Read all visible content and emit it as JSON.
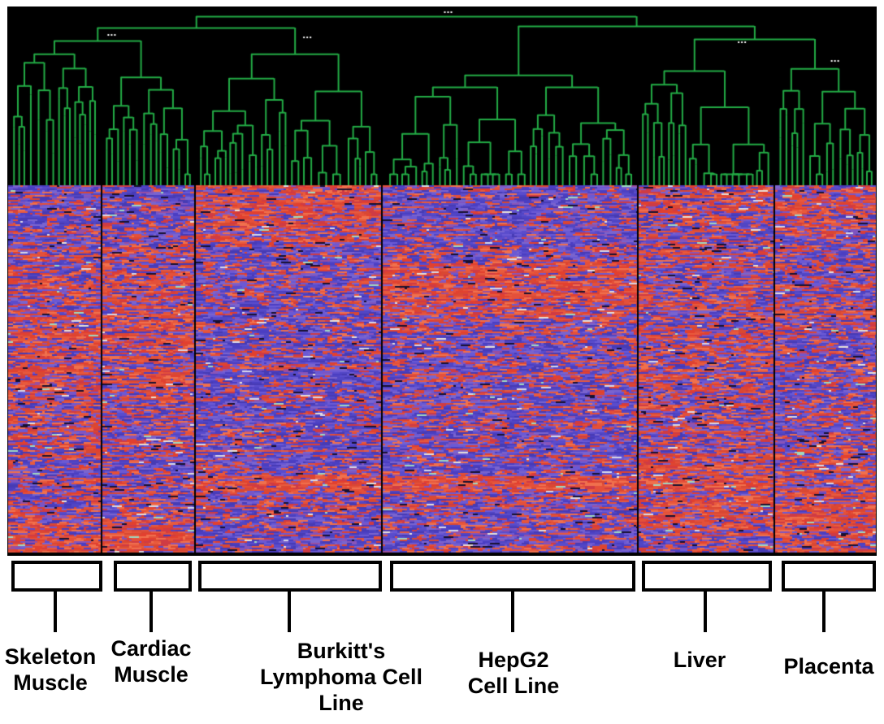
{
  "figure": {
    "background_hex": "#ffffff",
    "panel_background_hex": "#000000"
  },
  "chart_data": {
    "type": "heatmap",
    "description": "Two-way hierarchical clustering of gene expression: green sample dendrogram on top, genes as rows below; red/orange = high expression, blue/purple = low expression; six labeled sample clusters",
    "palette": {
      "reds": [
        "#e2402f",
        "#e85a3d",
        "#d94833",
        "#f0704d",
        "#cf3b44",
        "#e4503a"
      ],
      "blues": [
        "#5a4ccc",
        "#4b3ec2",
        "#6b59d4",
        "#5146c4",
        "#7a64ce",
        "#473bb4"
      ],
      "mids": [
        "#8a55b8",
        "#9a4f9f",
        "#7e54c0"
      ],
      "lights": [
        "#d8d8e8",
        "#e8e0d8",
        "#9fd8c0"
      ]
    },
    "dendrogram": {
      "color": "#23ad46",
      "position": "top",
      "ellipsis": [
        {
          "x": 0.507,
          "y": 6
        },
        {
          "x": 0.12,
          "y": 34
        },
        {
          "x": 0.345,
          "y": 37
        },
        {
          "x": 0.845,
          "y": 43
        },
        {
          "x": 0.952,
          "y": 66
        }
      ]
    },
    "row_bands": 24,
    "groups": [
      {
        "label": "Skeleton\nMuscle",
        "x0": 0.0,
        "x1": 0.108,
        "red_rows": [
          0.3,
          0.3,
          0.35,
          0.4,
          0.45,
          0.5,
          0.55,
          0.6,
          0.68,
          0.7,
          0.65,
          0.62,
          0.65,
          0.6,
          0.55,
          0.5,
          0.45,
          0.5,
          0.42,
          0.45,
          0.5,
          0.55,
          0.72,
          0.85
        ]
      },
      {
        "label": "Cardiac\nMuscle",
        "x0": 0.108,
        "x1": 0.216,
        "red_rows": [
          0.25,
          0.3,
          0.35,
          0.4,
          0.5,
          0.55,
          0.6,
          0.62,
          0.65,
          0.7,
          0.6,
          0.55,
          0.6,
          0.55,
          0.5,
          0.45,
          0.4,
          0.45,
          0.4,
          0.5,
          0.55,
          0.6,
          0.75,
          0.88
        ]
      },
      {
        "label": "Burkitt's\nLymphoma Cell\nLine",
        "x0": 0.216,
        "x1": 0.431,
        "red_rows": [
          0.85,
          0.8,
          0.7,
          0.55,
          0.35,
          0.3,
          0.3,
          0.35,
          0.3,
          0.3,
          0.35,
          0.3,
          0.3,
          0.35,
          0.3,
          0.3,
          0.35,
          0.3,
          0.3,
          0.9,
          0.4,
          0.3,
          0.3,
          0.3
        ]
      },
      {
        "label": "HepG2\nCell Line",
        "x0": 0.431,
        "x1": 0.725,
        "red_rows": [
          0.35,
          0.3,
          0.3,
          0.35,
          0.45,
          0.8,
          0.85,
          0.8,
          0.6,
          0.4,
          0.35,
          0.3,
          0.35,
          0.3,
          0.3,
          0.35,
          0.3,
          0.35,
          0.3,
          0.9,
          0.35,
          0.3,
          0.3,
          0.3
        ]
      },
      {
        "label": "Liver",
        "x0": 0.725,
        "x1": 0.882,
        "red_rows": [
          0.5,
          0.55,
          0.5,
          0.45,
          0.5,
          0.55,
          0.5,
          0.55,
          0.6,
          0.55,
          0.6,
          0.55,
          0.5,
          0.55,
          0.6,
          0.55,
          0.6,
          0.65,
          0.72,
          0.78,
          0.8,
          0.75,
          0.5,
          0.4
        ]
      },
      {
        "label": "Placenta",
        "x0": 0.882,
        "x1": 1.0,
        "red_rows": [
          0.7,
          0.75,
          0.6,
          0.45,
          0.4,
          0.35,
          0.4,
          0.45,
          0.5,
          0.45,
          0.4,
          0.45,
          0.5,
          0.45,
          0.5,
          0.45,
          0.4,
          0.45,
          0.5,
          0.55,
          0.8,
          0.85,
          0.78,
          0.6
        ]
      }
    ]
  }
}
